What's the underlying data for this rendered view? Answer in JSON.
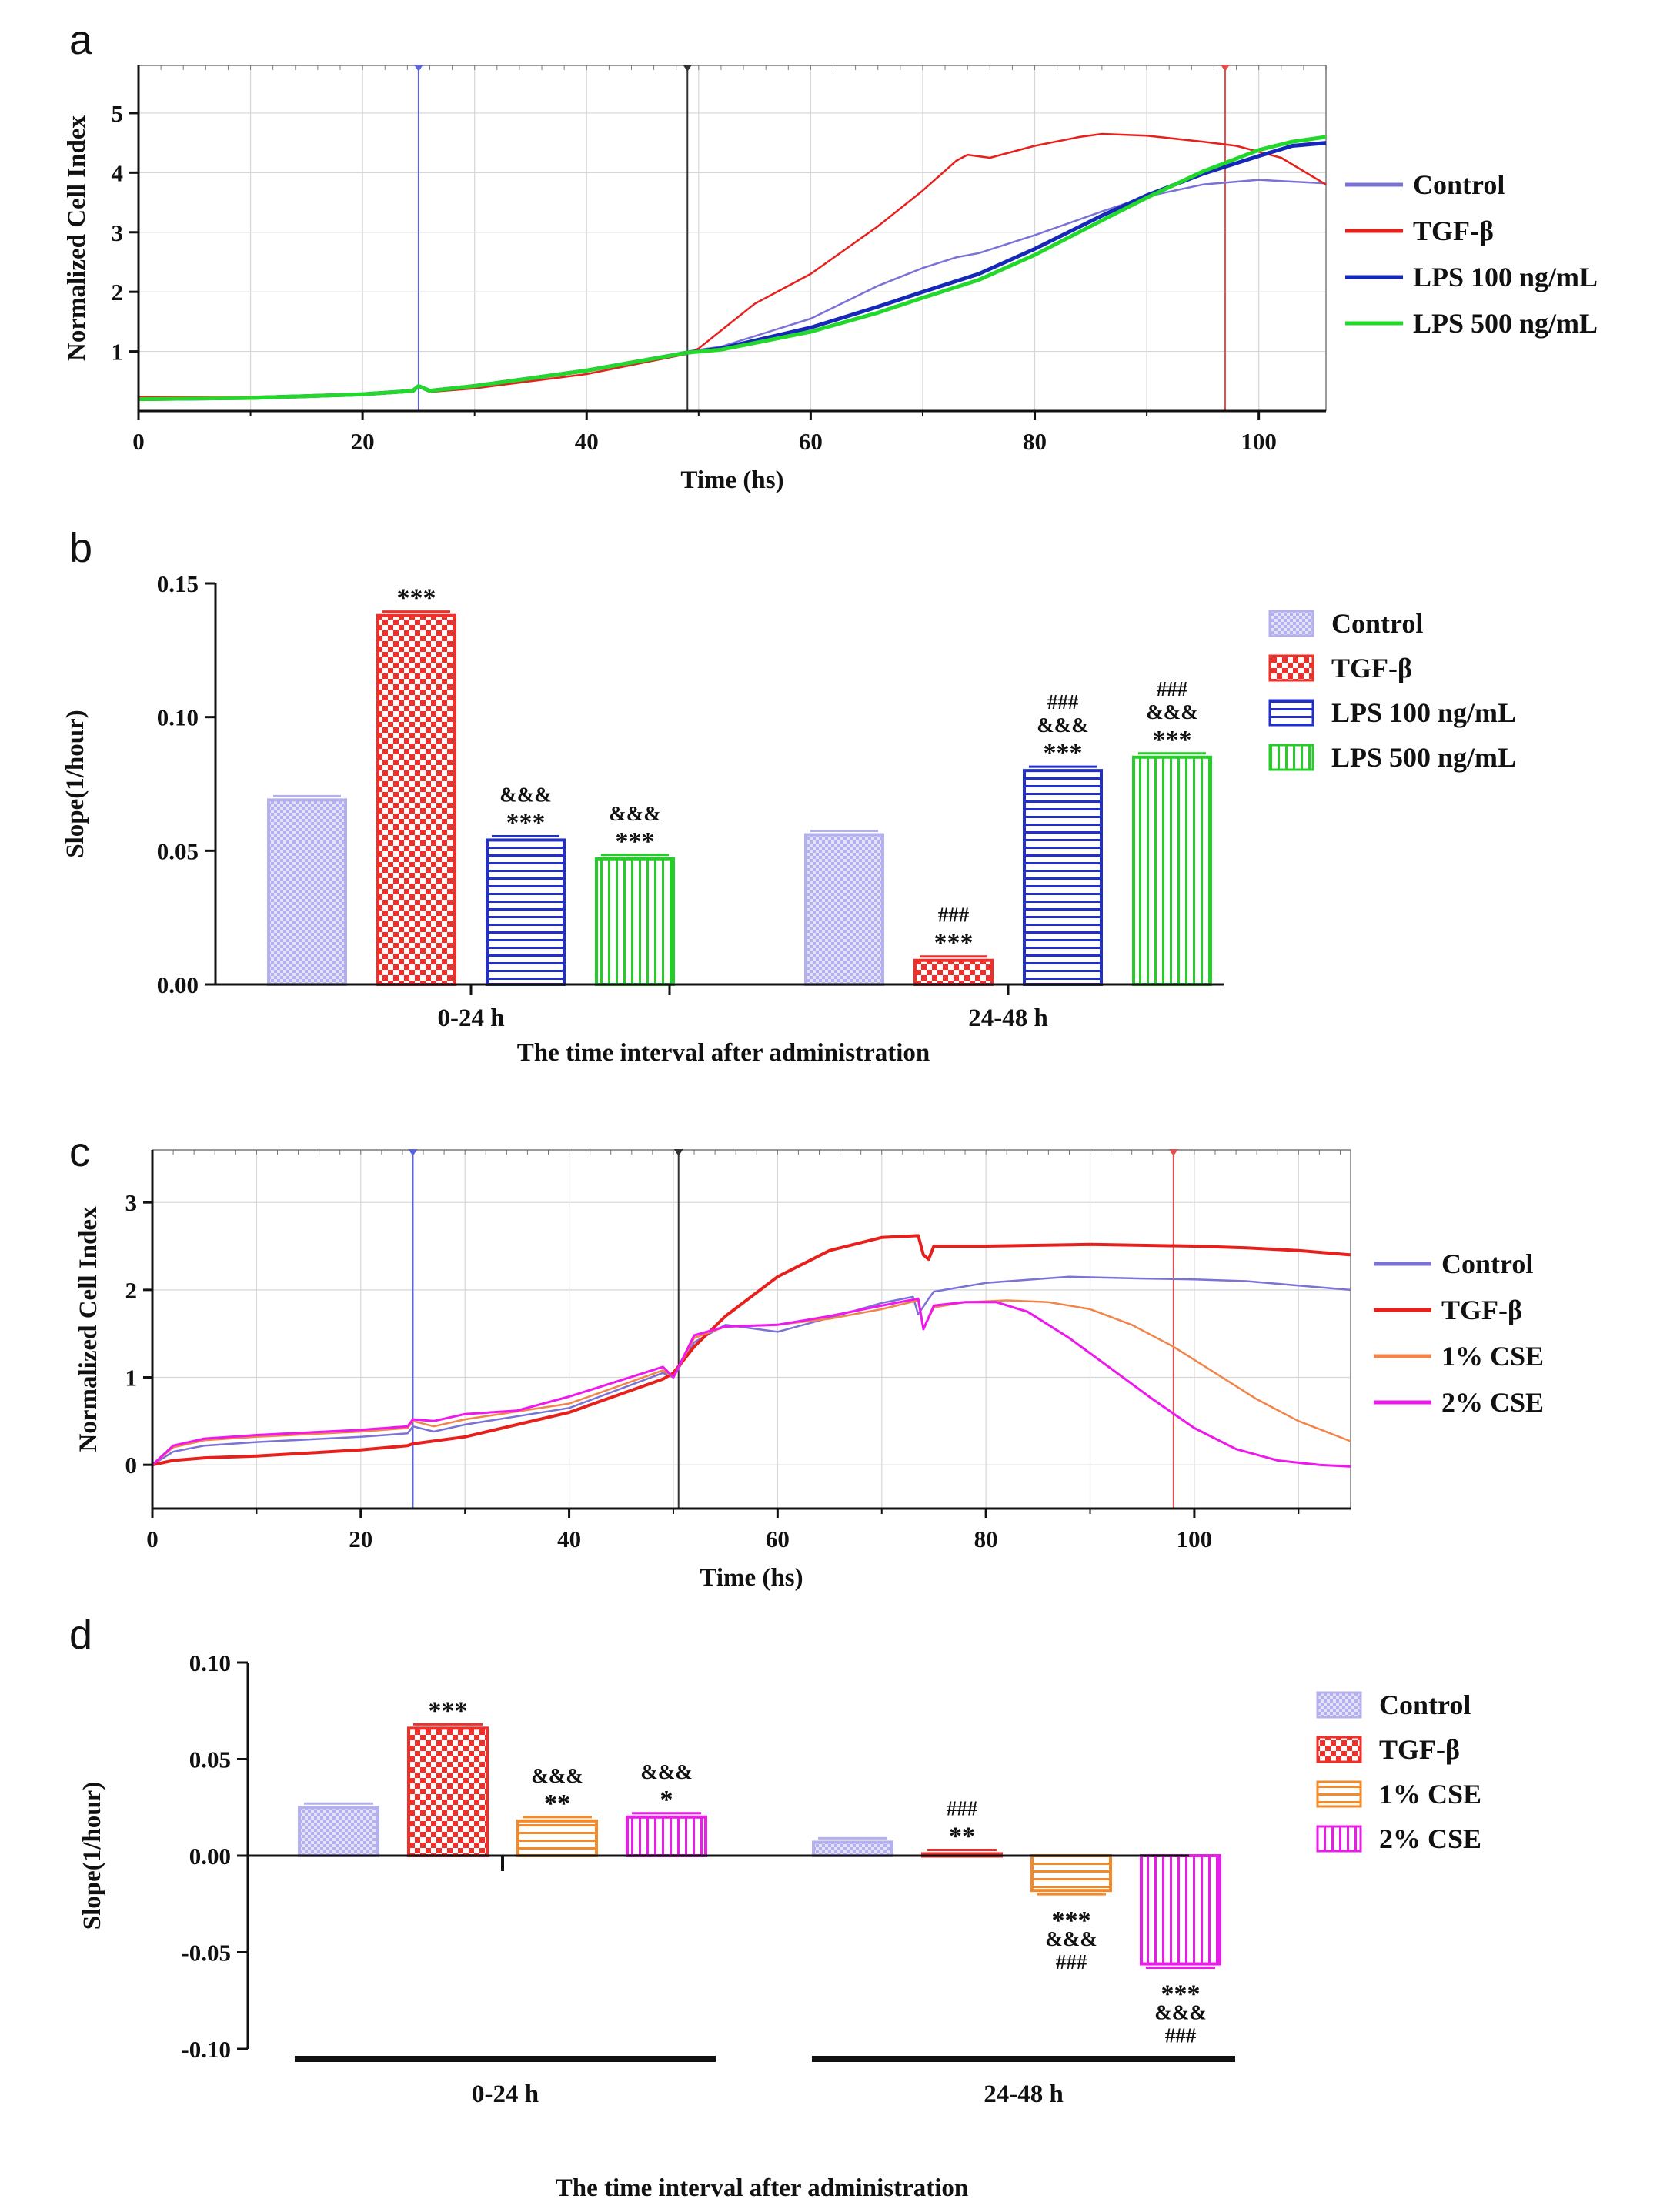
{
  "colors": {
    "control_line": "#7b72d6",
    "tgf": "#e8201c",
    "lps100": "#1628b8",
    "lps500": "#22d82a",
    "cse1": "#f2844a",
    "cse2": "#ee18ee",
    "control_bar": "#b4b0ee",
    "tgf_bar": "#ef2f2a",
    "lps100_bar": "#2230c8",
    "lps500_bar": "#28cc2a",
    "cse1_bar": "#f08a2a",
    "cse2_bar": "#e81ee8",
    "marker_blue": "#5a62e0",
    "marker_black": "#333333",
    "marker_red": "#e05050"
  },
  "chart_data": [
    {
      "panel": "a",
      "type": "line",
      "xlabel": "Time (hs)",
      "ylabel": "Normalized Cell Index",
      "xlim": [
        0,
        106
      ],
      "ylim": [
        0,
        5.8
      ],
      "xticks": [
        0,
        20,
        40,
        60,
        80,
        100
      ],
      "yticks": [
        1,
        2,
        3,
        4,
        5
      ],
      "markers": [
        25,
        49,
        97
      ],
      "legend": [
        "Control",
        "TGF-β",
        "LPS 100 ng/mL",
        "LPS 500 ng/mL"
      ],
      "series": [
        {
          "name": "Control",
          "x": [
            0,
            10,
            20,
            24.5,
            25,
            26,
            30,
            40,
            49,
            52,
            60,
            66,
            70,
            73,
            75,
            80,
            86,
            90,
            95,
            100,
            103,
            106
          ],
          "y": [
            0.2,
            0.22,
            0.28,
            0.34,
            0.42,
            0.34,
            0.42,
            0.68,
            1.0,
            1.08,
            1.55,
            2.1,
            2.4,
            2.58,
            2.65,
            2.95,
            3.35,
            3.6,
            3.8,
            3.88,
            3.85,
            3.82
          ]
        },
        {
          "name": "TGF-β",
          "x": [
            0,
            10,
            20,
            24.5,
            25,
            26,
            30,
            40,
            49,
            50,
            52,
            55,
            60,
            66,
            70,
            73,
            74,
            76,
            80,
            84,
            86,
            90,
            95,
            98,
            102,
            106
          ],
          "y": [
            0.24,
            0.24,
            0.28,
            0.32,
            0.4,
            0.32,
            0.38,
            0.62,
            0.96,
            1.05,
            1.35,
            1.8,
            2.3,
            3.1,
            3.7,
            4.2,
            4.3,
            4.25,
            4.45,
            4.6,
            4.65,
            4.62,
            4.52,
            4.45,
            4.25,
            3.8
          ]
        },
        {
          "name": "LPS 100 ng/mL",
          "x": [
            0,
            10,
            20,
            24.5,
            25,
            26,
            30,
            40,
            49,
            52,
            60,
            66,
            70,
            75,
            80,
            86,
            90,
            95,
            100,
            103,
            106
          ],
          "y": [
            0.2,
            0.22,
            0.28,
            0.34,
            0.42,
            0.34,
            0.42,
            0.68,
            0.98,
            1.05,
            1.4,
            1.75,
            2.0,
            2.3,
            2.72,
            3.28,
            3.62,
            3.98,
            4.28,
            4.45,
            4.5
          ]
        },
        {
          "name": "LPS 500 ng/mL",
          "x": [
            0,
            10,
            20,
            24.5,
            25,
            26,
            30,
            40,
            49,
            52,
            60,
            66,
            70,
            75,
            80,
            86,
            90,
            95,
            100,
            103,
            106
          ],
          "y": [
            0.2,
            0.22,
            0.28,
            0.34,
            0.42,
            0.34,
            0.42,
            0.68,
            0.98,
            1.03,
            1.33,
            1.65,
            1.9,
            2.2,
            2.62,
            3.2,
            3.58,
            4.02,
            4.38,
            4.52,
            4.6
          ]
        }
      ]
    },
    {
      "panel": "b",
      "type": "bar",
      "xlabel": "The time interval after administration",
      "ylabel": "Slope(1/hour)",
      "ylim": [
        0,
        0.15
      ],
      "yticks": [
        "0.00",
        "0.05",
        "0.10",
        "0.15"
      ],
      "categories": [
        "0-24 h",
        "24-48 h"
      ],
      "series": [
        {
          "name": "Control",
          "values": [
            0.069,
            0.056
          ]
        },
        {
          "name": "TGF-β",
          "values": [
            0.138,
            0.009
          ]
        },
        {
          "name": "LPS 100 ng/mL",
          "values": [
            0.054,
            0.08
          ]
        },
        {
          "name": "LPS 500 ng/mL",
          "values": [
            0.047,
            0.085
          ]
        }
      ],
      "annotations": [
        [
          [],
          [
            "***"
          ],
          [
            "&&&",
            "***"
          ],
          [
            "&&&",
            "***"
          ]
        ],
        [
          [],
          [
            "###",
            "***"
          ],
          [
            "###",
            "&&&",
            "***"
          ],
          [
            "###",
            "&&&",
            "***"
          ]
        ]
      ]
    },
    {
      "panel": "c",
      "type": "line",
      "xlabel": "Time (hs)",
      "ylabel": "Normalized Cell Index",
      "xlim": [
        0,
        115
      ],
      "ylim": [
        -0.5,
        3.6
      ],
      "xticks": [
        0,
        20,
        40,
        60,
        80,
        100
      ],
      "yticks": [
        0,
        1,
        2,
        3
      ],
      "markers": [
        25,
        50.5,
        98
      ],
      "legend": [
        "Control",
        "TGF-β",
        "1% CSE",
        "2% CSE"
      ],
      "series": [
        {
          "name": "Control",
          "x": [
            0,
            2,
            5,
            10,
            20,
            24.5,
            25,
            27,
            30,
            40,
            49,
            50,
            52,
            55,
            60,
            65,
            70,
            73,
            73.5,
            74.5,
            75,
            80,
            88,
            95,
            100,
            105,
            110,
            115
          ],
          "y": [
            0,
            0.15,
            0.22,
            0.26,
            0.32,
            0.36,
            0.44,
            0.38,
            0.46,
            0.65,
            1.05,
            1.0,
            1.4,
            1.6,
            1.52,
            1.68,
            1.85,
            1.92,
            1.72,
            1.9,
            1.98,
            2.08,
            2.15,
            2.13,
            2.12,
            2.1,
            2.05,
            2.0
          ]
        },
        {
          "name": "TGF-β",
          "x": [
            0,
            2,
            5,
            10,
            20,
            24.5,
            25,
            30,
            40,
            49,
            50,
            52,
            55,
            60,
            65,
            70,
            73.5,
            74,
            74.5,
            75,
            80,
            90,
            100,
            105,
            110,
            115
          ],
          "y": [
            0,
            0.05,
            0.08,
            0.1,
            0.17,
            0.22,
            0.24,
            0.32,
            0.6,
            0.98,
            1.05,
            1.35,
            1.7,
            2.15,
            2.45,
            2.6,
            2.62,
            2.4,
            2.35,
            2.5,
            2.5,
            2.52,
            2.5,
            2.48,
            2.45,
            2.4
          ]
        },
        {
          "name": "1% CSE",
          "x": [
            0,
            2,
            5,
            10,
            20,
            24.5,
            25,
            27,
            30,
            40,
            49,
            50,
            52,
            55,
            60,
            65,
            70,
            73.5,
            74,
            75,
            78,
            82,
            86,
            90,
            94,
            98,
            102,
            106,
            110,
            115
          ],
          "y": [
            0,
            0.2,
            0.28,
            0.32,
            0.38,
            0.42,
            0.5,
            0.44,
            0.52,
            0.7,
            1.08,
            1.0,
            1.45,
            1.58,
            1.6,
            1.67,
            1.78,
            1.88,
            1.55,
            1.8,
            1.86,
            1.88,
            1.86,
            1.78,
            1.6,
            1.35,
            1.05,
            0.75,
            0.5,
            0.27
          ]
        },
        {
          "name": "2% CSE",
          "x": [
            0,
            2,
            5,
            10,
            20,
            24.5,
            25,
            27,
            30,
            35,
            40,
            49,
            50,
            52,
            55,
            60,
            65,
            70,
            73.5,
            74,
            75,
            78,
            81,
            84,
            88,
            92,
            96,
            100,
            104,
            108,
            112,
            115
          ],
          "y": [
            0,
            0.22,
            0.3,
            0.34,
            0.4,
            0.44,
            0.52,
            0.5,
            0.58,
            0.62,
            0.78,
            1.12,
            1.0,
            1.48,
            1.58,
            1.6,
            1.7,
            1.82,
            1.9,
            1.55,
            1.82,
            1.86,
            1.86,
            1.75,
            1.45,
            1.1,
            0.75,
            0.42,
            0.18,
            0.05,
            0.0,
            -0.02
          ]
        }
      ]
    },
    {
      "panel": "d",
      "type": "bar",
      "xlabel": "The time interval after administration",
      "ylabel": "Slope(1/hour)",
      "ylim": [
        -0.1,
        0.1
      ],
      "yticks": [
        "-0.10",
        "-0.05",
        "0.00",
        "0.05",
        "0.10"
      ],
      "categories": [
        "0-24 h",
        "24-48 h"
      ],
      "series": [
        {
          "name": "Control",
          "values": [
            0.025,
            0.007
          ]
        },
        {
          "name": "TGF-β",
          "values": [
            0.066,
            0.001
          ]
        },
        {
          "name": "1% CSE",
          "values": [
            0.018,
            -0.018
          ]
        },
        {
          "name": "2% CSE",
          "values": [
            0.02,
            -0.056
          ]
        }
      ],
      "annotations": [
        [
          [],
          [
            "***"
          ],
          [
            "&&&",
            "**"
          ],
          [
            "&&&",
            "*"
          ]
        ],
        [
          [],
          [
            "###",
            "**"
          ],
          [
            "***",
            "&&&",
            "###"
          ],
          [
            "***",
            "&&&",
            "###"
          ]
        ]
      ]
    }
  ]
}
